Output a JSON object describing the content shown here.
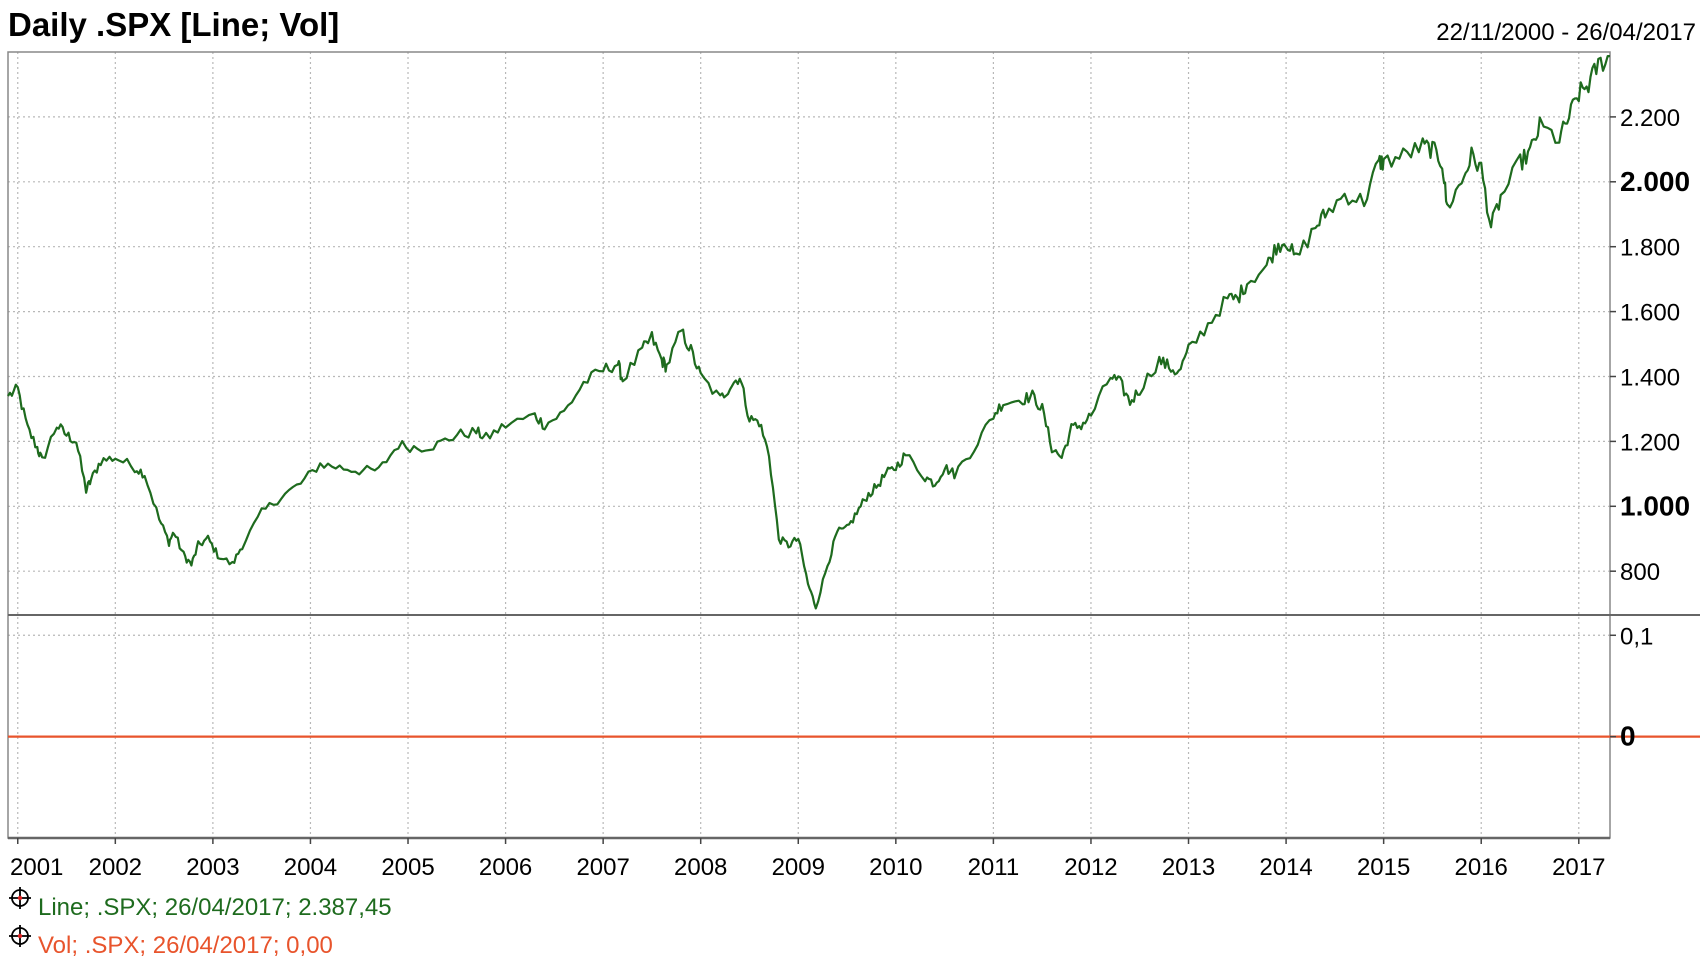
{
  "header": {
    "title": "Daily .SPX [Line; Vol]",
    "date_range": "22/11/2000 - 26/04/2017"
  },
  "legend": {
    "line_entry": "Line; .SPX; 26/04/2017; 2.387,45",
    "vol_entry": "Vol; .SPX; 26/04/2017; 0,00",
    "entry_icon": "crosshair-circle-icon"
  },
  "colors": {
    "line": "#1e6b1e",
    "vol": "#e8542c",
    "grid": "#b8b8b8",
    "frame": "#888888"
  },
  "chart_data": [
    {
      "type": "line",
      "title": "Daily .SPX [Line; Vol]",
      "subtitle": "22/11/2000 - 26/04/2017",
      "series": [
        {
          "name": "Line",
          "x": [
            2000.9,
            2001.0,
            2001.1,
            2001.2,
            2001.25,
            2001.4,
            2001.5,
            2001.6,
            2001.7,
            2001.75,
            2001.85,
            2002.0,
            2002.2,
            2002.3,
            2002.45,
            2002.55,
            2002.6,
            2002.7,
            2002.78,
            2002.85,
            2002.95,
            2003.05,
            2003.2,
            2003.3,
            2003.5,
            2003.7,
            2003.9,
            2004.1,
            2004.3,
            2004.5,
            2004.7,
            2004.9,
            2005.1,
            2005.3,
            2005.5,
            2005.7,
            2005.8,
            2006.0,
            2006.3,
            2006.4,
            2006.6,
            2006.8,
            2007.0,
            2007.15,
            2007.2,
            2007.4,
            2007.5,
            2007.6,
            2007.65,
            2007.8,
            2007.9,
            2008.0,
            2008.2,
            2008.3,
            2008.4,
            2008.5,
            2008.6,
            2008.7,
            2008.8,
            2008.9,
            2009.0,
            2009.1,
            2009.18,
            2009.3,
            2009.4,
            2009.5,
            2009.6,
            2009.7,
            2009.8,
            2009.9,
            2010.0,
            2010.1,
            2010.3,
            2010.4,
            2010.5,
            2010.6,
            2010.8,
            2011.0,
            2011.1,
            2011.3,
            2011.4,
            2011.5,
            2011.6,
            2011.7,
            2011.8,
            2011.9,
            2012.0,
            2012.2,
            2012.3,
            2012.4,
            2012.5,
            2012.7,
            2012.8,
            2012.9,
            2013.0,
            2013.2,
            2013.4,
            2013.5,
            2013.6,
            2013.8,
            2013.9,
            2014.0,
            2014.1,
            2014.3,
            2014.4,
            2014.6,
            2014.8,
            2014.95,
            2015.0,
            2015.2,
            2015.4,
            2015.5,
            2015.6,
            2015.65,
            2015.8,
            2015.9,
            2016.0,
            2016.1,
            2016.2,
            2016.4,
            2016.5,
            2016.6,
            2016.8,
            2016.9,
            2017.0,
            2017.1,
            2017.2,
            2017.32
          ],
          "values": [
            1340,
            1360,
            1240,
            1180,
            1140,
            1250,
            1220,
            1200,
            1050,
            1080,
            1140,
            1150,
            1120,
            1100,
            960,
            890,
            920,
            850,
            820,
            880,
            900,
            850,
            820,
            880,
            980,
            1030,
            1070,
            1130,
            1120,
            1110,
            1110,
            1190,
            1180,
            1190,
            1220,
            1230,
            1210,
            1250,
            1280,
            1250,
            1290,
            1380,
            1420,
            1440,
            1390,
            1480,
            1520,
            1450,
            1430,
            1540,
            1480,
            1400,
            1330,
            1370,
            1400,
            1270,
            1260,
            1160,
            900,
            880,
            900,
            760,
            690,
            820,
            920,
            930,
            980,
            1030,
            1060,
            1100,
            1120,
            1160,
            1090,
            1070,
            1120,
            1100,
            1180,
            1280,
            1320,
            1330,
            1340,
            1300,
            1180,
            1150,
            1240,
            1250,
            1280,
            1400,
            1380,
            1320,
            1360,
            1450,
            1430,
            1410,
            1480,
            1560,
            1640,
            1640,
            1690,
            1740,
            1800,
            1820,
            1760,
            1860,
            1900,
            1960,
            1940,
            2060,
            2060,
            2080,
            2110,
            2100,
            2060,
            1920,
            2000,
            2080,
            2040,
            1860,
            1950,
            2060,
            2090,
            2170,
            2130,
            2200,
            2270,
            2300,
            2360,
            2387.45
          ]
        },
        {
          "name": "Vol",
          "x": [
            2000.9,
            2017.32
          ],
          "values": [
            0,
            0
          ]
        }
      ],
      "x_ticks": [
        "2001",
        "2002",
        "2003",
        "2004",
        "2005",
        "2006",
        "2007",
        "2008",
        "2009",
        "2010",
        "2011",
        "2012",
        "2013",
        "2014",
        "2015",
        "2016",
        "2017"
      ],
      "x_tick_values": [
        2001,
        2002,
        2003,
        2004,
        2005,
        2006,
        2007,
        2008,
        2009,
        2010,
        2011,
        2012,
        2013,
        2014,
        2015,
        2016,
        2017
      ],
      "xlim": [
        2000.9,
        2017.32
      ],
      "price_panel": {
        "ylim": [
          665,
          2400
        ],
        "y_ticks": [
          {
            "value": 800,
            "label": "800",
            "bold": false
          },
          {
            "value": 1000,
            "label": "1.000",
            "bold": true
          },
          {
            "value": 1200,
            "label": "1.200",
            "bold": false
          },
          {
            "value": 1400,
            "label": "1.400",
            "bold": false
          },
          {
            "value": 1600,
            "label": "1.600",
            "bold": false
          },
          {
            "value": 1800,
            "label": "1.800",
            "bold": false
          },
          {
            "value": 2000,
            "label": "2.000",
            "bold": true
          },
          {
            "value": 2200,
            "label": "2.200",
            "bold": false
          }
        ]
      },
      "volume_panel": {
        "ylim": [
          -0.1,
          0.12
        ],
        "y_ticks": [
          {
            "value": 0.1,
            "label": "0,1",
            "bold": false
          },
          {
            "value": 0,
            "label": "0",
            "bold": true
          }
        ]
      },
      "grid": true,
      "legend_position": "bottom-left"
    }
  ]
}
